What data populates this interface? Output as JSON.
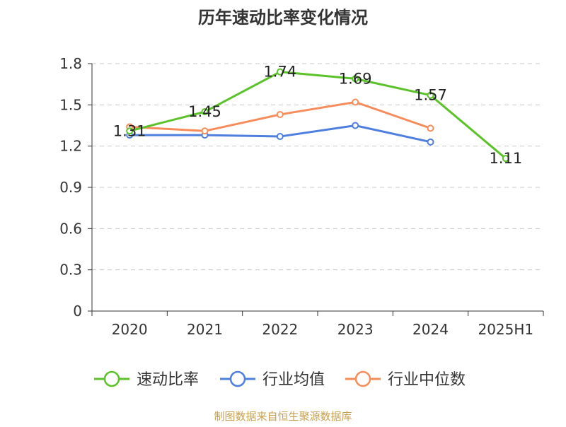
{
  "chart_data": {
    "type": "line",
    "title": "历年速动比率变化情况",
    "categories": [
      "2020",
      "2021",
      "2022",
      "2023",
      "2024",
      "2025H1"
    ],
    "yticks": [
      "0",
      "0.3",
      "0.6",
      "0.9",
      "1.2",
      "1.5",
      "1.8"
    ],
    "ylim": [
      0,
      1.8
    ],
    "grid": true,
    "legend_position": "bottom",
    "series": [
      {
        "name": "速动比率",
        "color": "#5cc229",
        "values": [
          1.31,
          1.45,
          1.74,
          1.69,
          1.57,
          1.11
        ],
        "labels": [
          "1.31",
          "1.45",
          "1.74",
          "1.69",
          "1.57",
          "1.11"
        ]
      },
      {
        "name": "行业均值",
        "color": "#4e7fde",
        "values": [
          1.28,
          1.28,
          1.27,
          1.35,
          1.23,
          null
        ]
      },
      {
        "name": "行业中位数",
        "color": "#f78c5a",
        "values": [
          1.34,
          1.31,
          1.43,
          1.52,
          1.33,
          null
        ]
      }
    ]
  },
  "source": "制图数据来自恒生聚源数据库"
}
